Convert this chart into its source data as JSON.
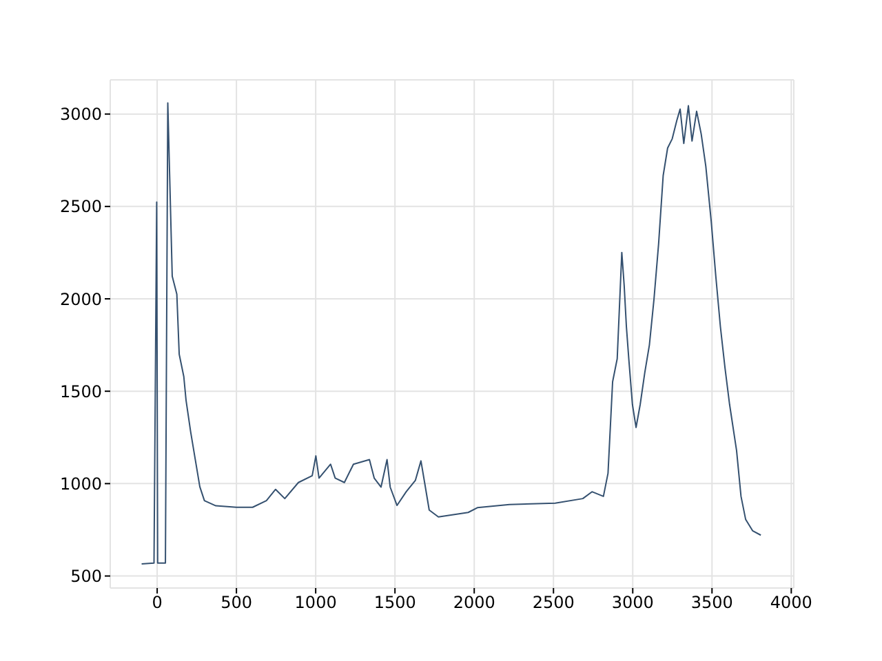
{
  "chart_data": {
    "type": "line",
    "x": [
      -98,
      -20,
      -3,
      3,
      52,
      67,
      95,
      124,
      139,
      168,
      182,
      211,
      240,
      269,
      298,
      370,
      500,
      602,
      689,
      747,
      805,
      891,
      978,
      1001,
      1021,
      1094,
      1123,
      1181,
      1238,
      1339,
      1369,
      1412,
      1450,
      1470,
      1513,
      1571,
      1629,
      1664,
      1687,
      1716,
      1774,
      1962,
      2020,
      2222,
      2511,
      2685,
      2743,
      2815,
      2844,
      2873,
      2902,
      2931,
      2946,
      2960,
      2975,
      2998,
      3021,
      3047,
      3076,
      3105,
      3134,
      3163,
      3192,
      3220,
      3249,
      3278,
      3299,
      3322,
      3351,
      3374,
      3403,
      3432,
      3461,
      3495,
      3524,
      3553,
      3582,
      3611,
      3655,
      3683,
      3712,
      3756,
      3808
    ],
    "series": [
      {
        "color": "#34506f",
        "values": [
          565,
          570,
          2524,
          570,
          570,
          3060,
          2122,
          2025,
          1700,
          1579,
          1452,
          1281,
          1132,
          983,
          908,
          880,
          872,
          872,
          908,
          969,
          919,
          1006,
          1043,
          1150,
          1030,
          1105,
          1030,
          1006,
          1105,
          1130,
          1030,
          981,
          1130,
          981,
          882,
          956,
          1018,
          1123,
          1006,
          857,
          820,
          844,
          870,
          887,
          894,
          919,
          956,
          931,
          1056,
          1551,
          1676,
          2251,
          2072,
          1849,
          1676,
          1428,
          1304,
          1428,
          1601,
          1750,
          1998,
          2296,
          2667,
          2816,
          2866,
          2965,
          3027,
          2841,
          3045,
          2854,
          3015,
          2891,
          2717,
          2420,
          2122,
          1849,
          1626,
          1428,
          1179,
          931,
          807,
          745,
          721
        ]
      }
    ],
    "xlim": [
      -296,
      4016
    ],
    "ylim": [
      435,
      3185
    ],
    "xticks": [
      0,
      500,
      1000,
      1500,
      2000,
      2500,
      3000,
      3500,
      4000
    ],
    "yticks": [
      500,
      1000,
      1500,
      2000,
      2500,
      3000
    ],
    "grid": true,
    "line_style": "solid",
    "marker": "none"
  }
}
